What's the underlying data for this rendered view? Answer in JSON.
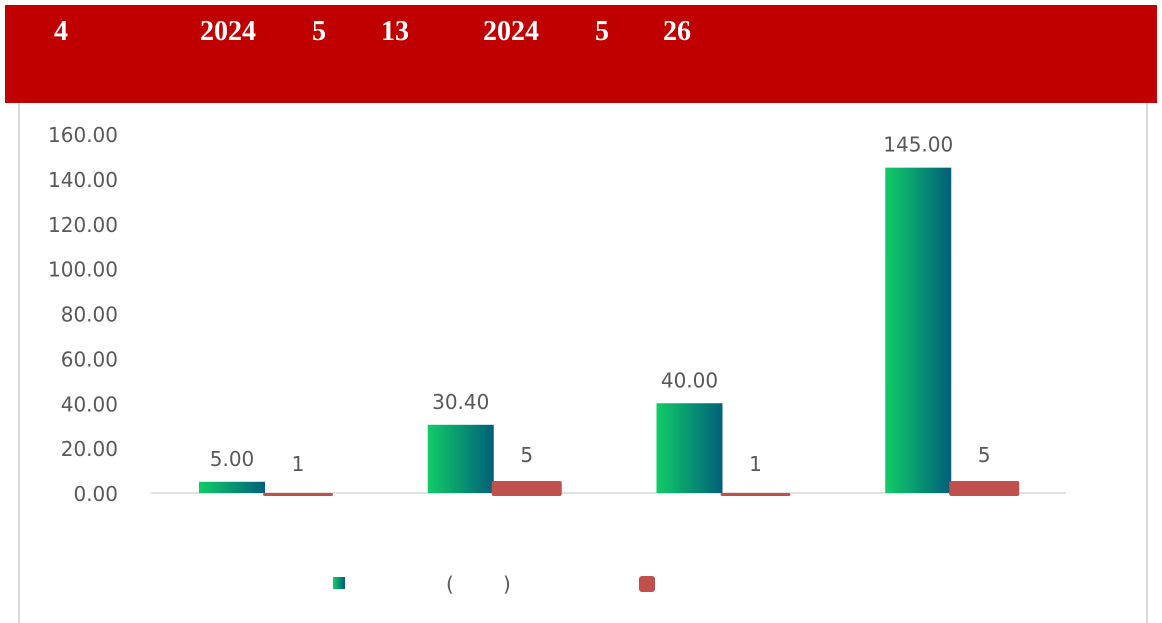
{
  "header": {
    "tokens": [
      "4",
      "2024",
      "5",
      "13",
      "2024",
      "5",
      "26"
    ],
    "background": "#c00000",
    "text_color": "#ffffff"
  },
  "legend": {
    "open_paren": "(",
    "close_paren": ")"
  },
  "chart_data": {
    "type": "bar",
    "categories": [
      "",
      "",
      "",
      ""
    ],
    "series": [
      {
        "values": [
          5.0,
          30.4,
          40.0,
          145.0
        ],
        "labels": [
          "5.00",
          "30.40",
          "40.00",
          "145.00"
        ],
        "color_from": "#11cc66",
        "color_to": "#005f7a"
      },
      {
        "values": [
          1,
          5,
          1,
          5
        ],
        "labels": [
          "1",
          "5",
          "1",
          "5"
        ],
        "color": "#c0504d"
      }
    ],
    "y_ticks": [
      "0.00",
      "20.00",
      "40.00",
      "60.00",
      "80.00",
      "100.00",
      "120.00",
      "140.00",
      "160.00"
    ],
    "ylim": [
      0,
      160
    ],
    "grid": false,
    "legend_position": "bottom",
    "title": "",
    "xlabel": "",
    "ylabel": ""
  }
}
